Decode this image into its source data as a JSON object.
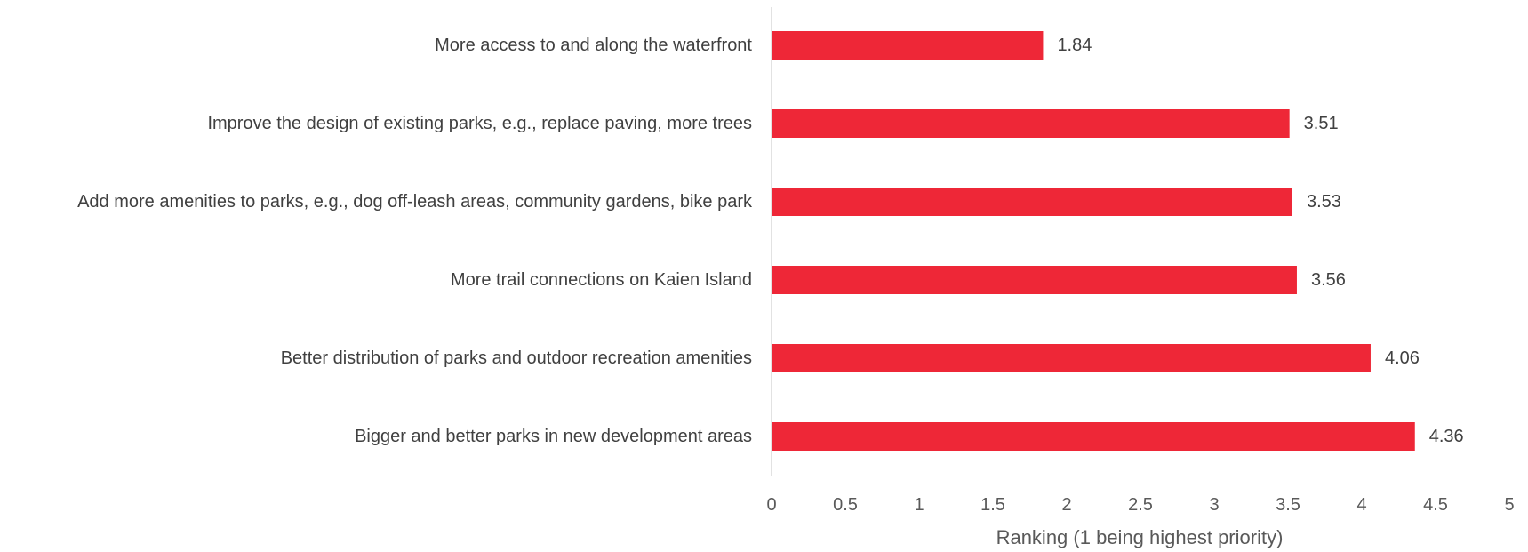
{
  "chart_data": {
    "type": "bar",
    "orientation": "horizontal",
    "categories": [
      "More access to and along the waterfront",
      "Improve the design of existing parks, e.g., replace paving, more trees",
      "Add more amenities to parks, e.g., dog off-leash areas, community gardens, bike park",
      "More trail connections on Kaien Island",
      "Better distribution of parks and outdoor recreation amenities",
      "Bigger and better parks in new development areas"
    ],
    "values": [
      1.84,
      3.51,
      3.53,
      3.56,
      4.06,
      4.36
    ],
    "value_labels": [
      "1.84",
      "3.51",
      "3.53",
      "3.56",
      "4.06",
      "4.36"
    ],
    "title": "",
    "xlabel": "Ranking (1 being highest priority)",
    "ylabel": "",
    "xlim": [
      0,
      5
    ],
    "xticks": [
      0,
      0.5,
      1,
      1.5,
      2,
      2.5,
      3,
      3.5,
      4,
      4.5,
      5
    ],
    "xtick_labels": [
      "0",
      "0.5",
      "1",
      "1.5",
      "2",
      "2.5",
      "3",
      "3.5",
      "4",
      "4.5",
      "5"
    ],
    "grid": false,
    "legend": "none",
    "colors": {
      "bar": "#EE2737",
      "axis_line": "#D9D9D9"
    }
  }
}
